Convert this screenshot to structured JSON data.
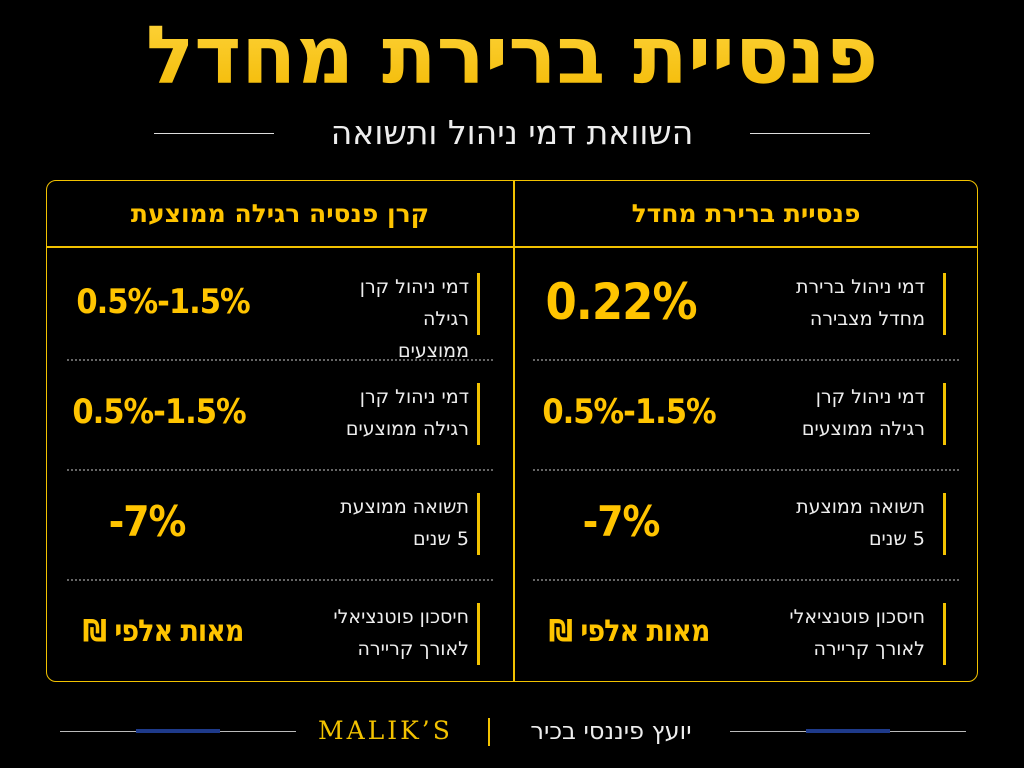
{
  "header": {
    "title": "פנסיית ברירת מחדל",
    "subtitle": "השוואת דמי ניהול ותשואה"
  },
  "columns": {
    "right": {
      "heading": "פנסיית ברירת מחדל",
      "rows": [
        {
          "label_1": "דמי ניהול ברירת",
          "label_2": "מחדל מצבירה",
          "value": "0.22%"
        },
        {
          "label_1": "דמי ניהול קרן",
          "label_2": "רגילה ממוצעים",
          "value": "0.5%-1.5%"
        },
        {
          "label_1": "תשואה ממוצעת",
          "label_2": "5 שנים",
          "value": "-7%"
        },
        {
          "label_1": "חיסכון פוטנציאלי",
          "label_2": "לאורך קריירה",
          "value": "מאות אלפי ₪"
        }
      ]
    },
    "left": {
      "heading": "קרן פנסיה רגילה ממוצעת",
      "rows": [
        {
          "label_1": "דמי ניהול קרן רגילה",
          "label_2": "ממוצעים",
          "value": "0.5%-1.5%"
        },
        {
          "label_1": "דמי ניהול קרן",
          "label_2": "רגילה ממוצעים",
          "value": "0.5%-1.5%"
        },
        {
          "label_1": "תשואה ממוצעת",
          "label_2": "5 שנים",
          "value": "-7%"
        },
        {
          "label_1": "חיסכון פוטנציאלי",
          "label_2": "לאורך קריירה",
          "value": "מאות אלפי ₪"
        }
      ]
    }
  },
  "footer": {
    "brand": "MALIK’S",
    "tagline": "יועץ פיננסי בכיר"
  },
  "colors": {
    "accent": "#f2c200",
    "background": "#000000",
    "footer_accent": "#1e3a8a"
  }
}
